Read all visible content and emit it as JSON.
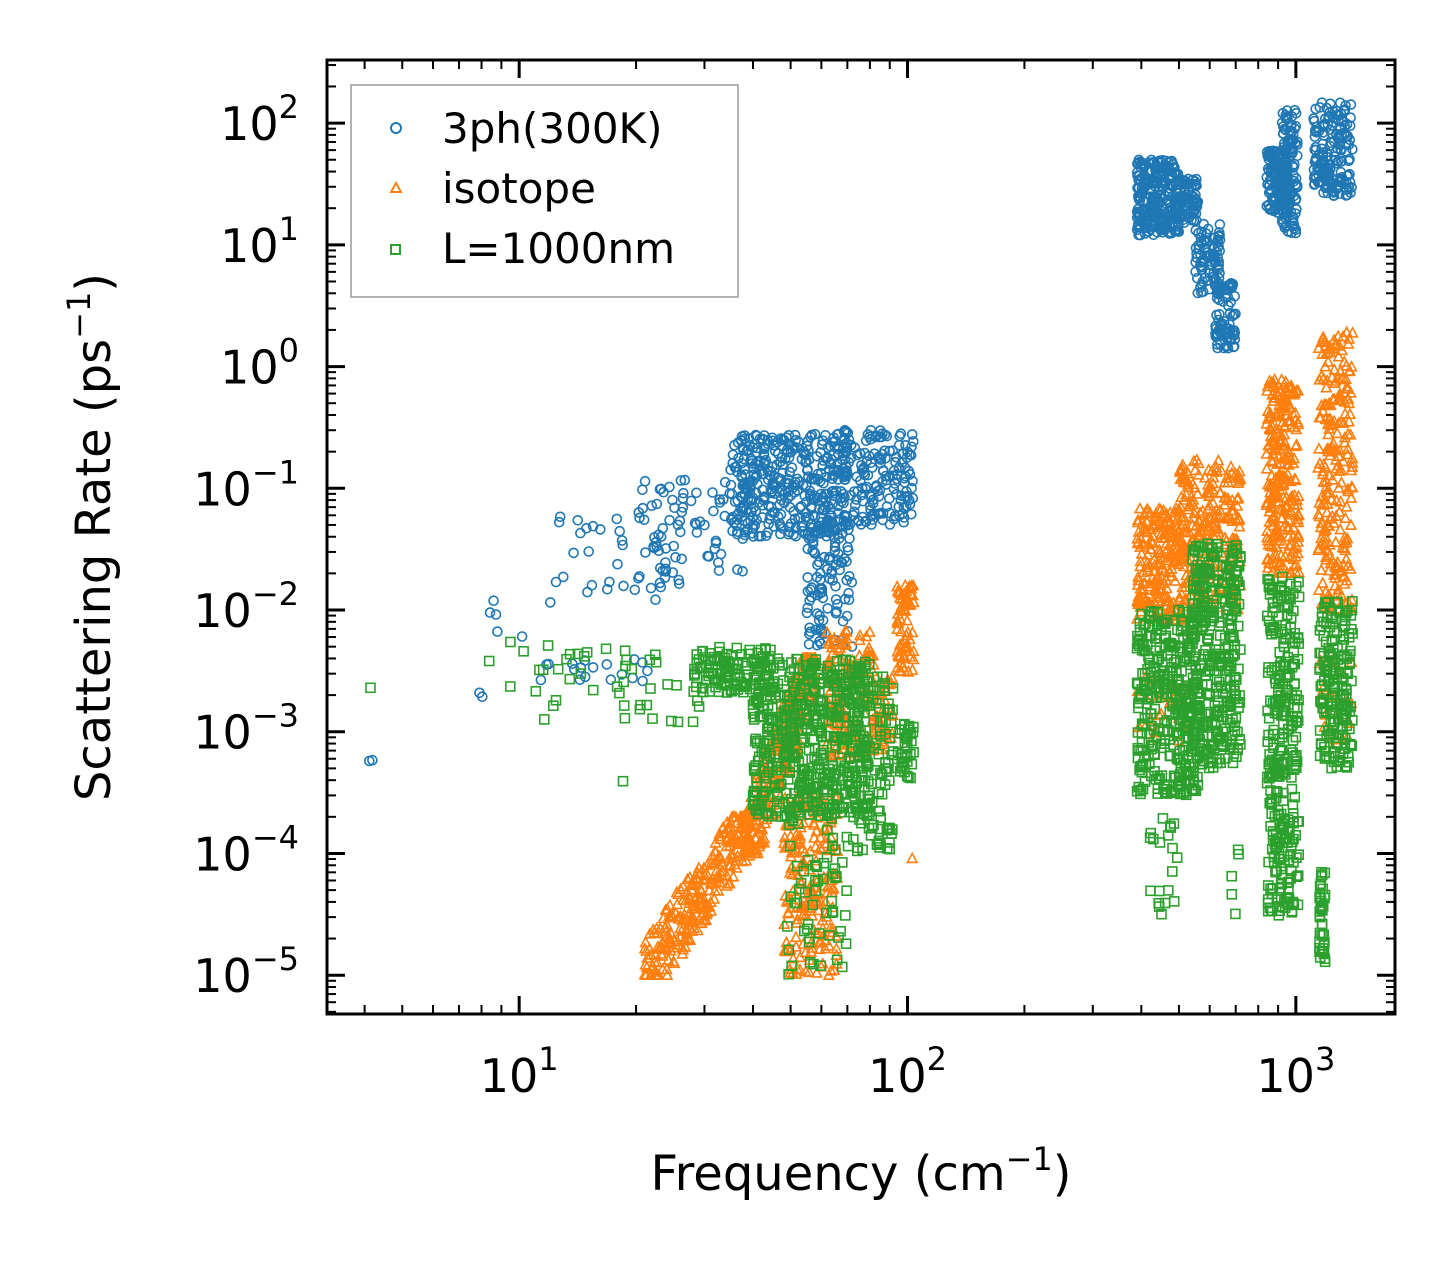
{
  "chart_data": {
    "type": "scatter",
    "xscale": "log",
    "yscale": "log",
    "xlabel": "Frequency (cm⁻¹)",
    "xlabel_parts": {
      "base": "Frequency (cm",
      "sup": "−1",
      "tail": ")"
    },
    "ylabel": "Scattering Rate (ps⁻¹)",
    "ylabel_parts": {
      "base": "Scattering Rate (ps",
      "sup": "−1",
      "tail": ")"
    },
    "xlim": [
      3.2,
      1800
    ],
    "ylim": [
      4.8e-06,
      330
    ],
    "xticks": [
      {
        "base": "10",
        "exp": "1",
        "value": 10
      },
      {
        "base": "10",
        "exp": "2",
        "value": 100
      },
      {
        "base": "10",
        "exp": "3",
        "value": 1000
      }
    ],
    "yticks": [
      {
        "base": "10",
        "exp": "2",
        "value": 100
      },
      {
        "base": "10",
        "exp": "1",
        "value": 10
      },
      {
        "base": "10",
        "exp": "0",
        "value": 1
      },
      {
        "base": "10",
        "exp": "−1",
        "value": 0.1
      },
      {
        "base": "10",
        "exp": "−2",
        "value": 0.01
      },
      {
        "base": "10",
        "exp": "−3",
        "value": 0.001
      },
      {
        "base": "10",
        "exp": "−4",
        "value": 0.0001
      },
      {
        "base": "10",
        "exp": "−5",
        "value": 1e-05
      }
    ],
    "legend_position": "top-left",
    "series": [
      {
        "name": "3ph(300K)",
        "marker": "circle",
        "color": "#1f77b4",
        "clusters": [
          {
            "x": [
              4,
              4.2
            ],
            "y": [
              0.00055,
              0.00062
            ],
            "n": 2
          },
          {
            "x": [
              7.8,
              8.2
            ],
            "y": [
              0.0017,
              0.0021
            ],
            "n": 2
          },
          {
            "x": [
              7.5,
              11
            ],
            "y": [
              0.005,
              0.02
            ],
            "n": 5
          },
          {
            "x": [
              11,
              22
            ],
            "y": [
              0.0025,
              0.004
            ],
            "n": 18
          },
          {
            "x": [
              12,
              24
            ],
            "y": [
              0.01,
              0.06
            ],
            "n": 30
          },
          {
            "x": [
              20,
              40
            ],
            "y": [
              0.015,
              0.12
            ],
            "n": 80
          },
          {
            "x": [
              35,
              70
            ],
            "y": [
              0.04,
              0.28
            ],
            "n": 380
          },
          {
            "x": [
              55,
              72
            ],
            "y": [
              0.005,
              0.06
            ],
            "n": 110
          },
          {
            "x": [
              68,
              104
            ],
            "y": [
              0.05,
              0.3
            ],
            "n": 160
          },
          {
            "x": [
              390,
              500
            ],
            "y": [
              12,
              50
            ],
            "n": 260
          },
          {
            "x": [
              490,
              560
            ],
            "y": [
              15,
              35
            ],
            "n": 80
          },
          {
            "x": [
              550,
              640
            ],
            "y": [
              4,
              15
            ],
            "n": 80
          },
          {
            "x": [
              620,
              700
            ],
            "y": [
              1.4,
              5
            ],
            "n": 80
          },
          {
            "x": [
              840,
              960
            ],
            "y": [
              18,
              60
            ],
            "n": 120
          },
          {
            "x": [
              920,
              1010
            ],
            "y": [
              12,
              130
            ],
            "n": 120
          },
          {
            "x": [
              1110,
              1400
            ],
            "y": [
              25,
              150
            ],
            "n": 170
          }
        ]
      },
      {
        "name": "isotope",
        "marker": "triangle",
        "color": "#ff7f0e",
        "clusters": [
          {
            "x": [
              21,
              40
            ],
            "y": [
              1e-05,
              0.0002
            ],
            "n": 280,
            "corr": true
          },
          {
            "x": [
              38,
              58
            ],
            "y": [
              0.0001,
              0.004
            ],
            "n": 250,
            "corr": true
          },
          {
            "x": [
              48,
              66
            ],
            "y": [
              1e-05,
              0.0003
            ],
            "n": 200
          },
          {
            "x": [
              62,
              82
            ],
            "y": [
              0.0006,
              0.007
            ],
            "n": 140
          },
          {
            "x": [
              82,
              92
            ],
            "y": [
              0.0007,
              0.003
            ],
            "n": 40
          },
          {
            "x": [
              94,
              104
            ],
            "y": [
              0.003,
              0.016
            ],
            "n": 70
          },
          {
            "x": [
              102,
              106
            ],
            "y": [
              9e-05,
              0.00012
            ],
            "n": 1
          },
          {
            "x": [
              390,
              520
            ],
            "y": [
              0.008,
              0.07
            ],
            "n": 220
          },
          {
            "x": [
              500,
              720
            ],
            "y": [
              0.01,
              0.18
            ],
            "n": 250
          },
          {
            "x": [
              390,
              520
            ],
            "y": [
              0.0007,
              0.003
            ],
            "n": 30
          },
          {
            "x": [
              840,
              1020
            ],
            "y": [
              0.02,
              0.8
            ],
            "n": 250
          },
          {
            "x": [
              1140,
              1400
            ],
            "y": [
              0.01,
              2
            ],
            "n": 230
          },
          {
            "x": [
              1140,
              1400
            ],
            "y": [
              0.0008,
              0.004
            ],
            "n": 25
          }
        ]
      },
      {
        "name": "L=1000nm",
        "marker": "square",
        "color": "#2ca02c",
        "clusters": [
          {
            "x": [
              4,
              4.3
            ],
            "y": [
              0.0022,
              0.0025
            ],
            "n": 1
          },
          {
            "x": [
              7.5,
              12
            ],
            "y": [
              0.002,
              0.006
            ],
            "n": 6
          },
          {
            "x": [
              11,
              30
            ],
            "y": [
              0.0012,
              0.005
            ],
            "n": 40
          },
          {
            "x": [
              17.5,
              19
            ],
            "y": [
              0.00036,
              0.0004
            ],
            "n": 1
          },
          {
            "x": [
              28,
              45
            ],
            "y": [
              0.002,
              0.005
            ],
            "n": 120
          },
          {
            "x": [
              40,
              80
            ],
            "y": [
              0.0002,
              0.004
            ],
            "n": 550
          },
          {
            "x": [
              48,
              70
            ],
            "y": [
              1e-05,
              0.0002
            ],
            "n": 60
          },
          {
            "x": [
              70,
              92
            ],
            "y": [
              0.0001,
              0.003
            ],
            "n": 120
          },
          {
            "x": [
              94,
              104
            ],
            "y": [
              0.0004,
              0.0012
            ],
            "n": 40
          },
          {
            "x": [
              390,
              560
            ],
            "y": [
              0.0003,
              0.01
            ],
            "n": 350
          },
          {
            "x": [
              420,
              500
            ],
            "y": [
              3e-05,
              0.0002
            ],
            "n": 20
          },
          {
            "x": [
              540,
              720
            ],
            "y": [
              0.0005,
              0.035
            ],
            "n": 350
          },
          {
            "x": [
              680,
              720
            ],
            "y": [
              3e-05,
              0.00012
            ],
            "n": 5
          },
          {
            "x": [
              840,
              1020
            ],
            "y": [
              3e-05,
              0.02
            ],
            "n": 300
          },
          {
            "x": [
              1150,
              1190
            ],
            "y": [
              1.2e-05,
              7e-05
            ],
            "n": 40
          },
          {
            "x": [
              1150,
              1400
            ],
            "y": [
              0.0005,
              0.012
            ],
            "n": 180
          }
        ]
      }
    ]
  }
}
